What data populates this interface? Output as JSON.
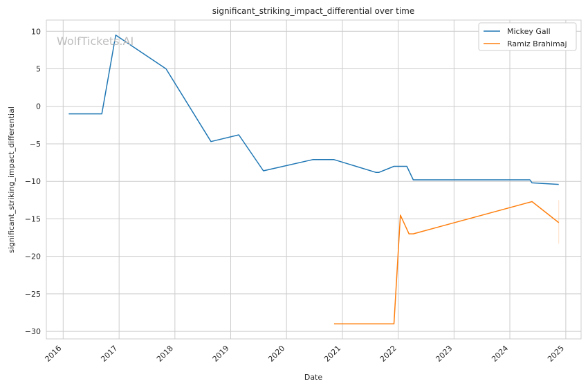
{
  "chart_data": {
    "type": "line",
    "title": "significant_striking_impact_differential over time",
    "xlabel": "Date",
    "ylabel": "significant_striking_impact_differential",
    "watermark": "WolfTickets.AI",
    "x_ticks": [
      "2016",
      "2017",
      "2018",
      "2019",
      "2020",
      "2021",
      "2022",
      "2023",
      "2024",
      "2025"
    ],
    "y_ticks": [
      10,
      5,
      0,
      -5,
      -10,
      -15,
      -20,
      -25,
      -30
    ],
    "xlim": [
      "2015-09-13",
      "2025-04-11"
    ],
    "ylim": [
      -31,
      11.5
    ],
    "grid": true,
    "legend_position": "top-right",
    "series": [
      {
        "name": "Mickey Gall",
        "color": "#1f77b4",
        "points": [
          [
            "2016-02-06",
            -1.0
          ],
          [
            "2016-09-10",
            -1.0
          ],
          [
            "2016-12-10",
            9.5
          ],
          [
            "2017-11-04",
            5.0
          ],
          [
            "2018-08-25",
            -4.7
          ],
          [
            "2019-02-23",
            -3.8
          ],
          [
            "2019-08-03",
            -8.6
          ],
          [
            "2020-06-20",
            -7.1
          ],
          [
            "2020-11-07",
            -7.1
          ],
          [
            "2021-08-07",
            -8.8
          ],
          [
            "2021-08-28",
            -8.8
          ],
          [
            "2021-12-04",
            -8.0
          ],
          [
            "2022-02-26",
            -8.0
          ],
          [
            "2022-04-09",
            -9.8
          ],
          [
            "2024-05-11",
            -9.8
          ],
          [
            "2024-05-25",
            -10.2
          ],
          [
            "2024-11-16",
            -10.4
          ]
        ]
      },
      {
        "name": "Ramiz Brahimaj",
        "color": "#ff7f0e",
        "points": [
          [
            "2020-11-07",
            -29.0
          ],
          [
            "2021-12-04",
            -29.0
          ],
          [
            "2022-01-15",
            -14.5
          ],
          [
            "2022-03-12",
            -17.0
          ],
          [
            "2022-04-09",
            -17.0
          ],
          [
            "2024-05-25",
            -12.7
          ],
          [
            "2024-11-16",
            -15.5
          ]
        ]
      }
    ],
    "error_band": {
      "date": "2024-11-16",
      "low": -18.3,
      "high": -12.5,
      "color": "#ff7f0e"
    }
  }
}
